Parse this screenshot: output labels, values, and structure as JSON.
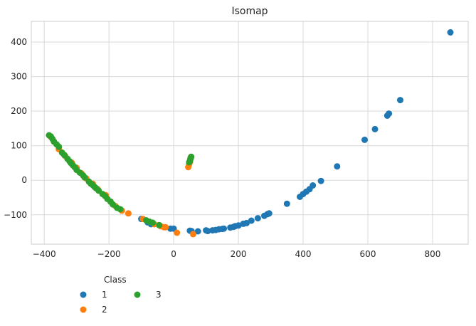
{
  "chart_data": {
    "type": "scatter",
    "title": "Isomap",
    "xlabel": "",
    "ylabel": "",
    "xlim": [
      -440,
      910
    ],
    "ylim": [
      -185,
      460
    ],
    "x_ticks": [
      -400,
      -200,
      0,
      200,
      400,
      600,
      800
    ],
    "y_ticks": [
      -100,
      0,
      100,
      200,
      300,
      400
    ],
    "grid": true,
    "legend": {
      "title": "Class",
      "placement": "below-left",
      "ncol": 2
    },
    "series": [
      {
        "name": "1",
        "color": "#1f77b4",
        "points": [
          [
            -100,
            -112
          ],
          [
            -80,
            -122
          ],
          [
            -70,
            -127
          ],
          [
            -10,
            -140
          ],
          [
            0,
            -140
          ],
          [
            50,
            -146
          ],
          [
            55,
            -147
          ],
          [
            75,
            -148
          ],
          [
            100,
            -145
          ],
          [
            105,
            -147
          ],
          [
            120,
            -145
          ],
          [
            130,
            -144
          ],
          [
            140,
            -142
          ],
          [
            150,
            -141
          ],
          [
            155,
            -140
          ],
          [
            175,
            -137
          ],
          [
            185,
            -135
          ],
          [
            190,
            -133
          ],
          [
            200,
            -131
          ],
          [
            215,
            -126
          ],
          [
            225,
            -124
          ],
          [
            240,
            -117
          ],
          [
            260,
            -110
          ],
          [
            280,
            -103
          ],
          [
            290,
            -98
          ],
          [
            295,
            -96
          ],
          [
            350,
            -68
          ],
          [
            390,
            -48
          ],
          [
            400,
            -40
          ],
          [
            410,
            -33
          ],
          [
            420,
            -26
          ],
          [
            430,
            -15
          ],
          [
            455,
            -2
          ],
          [
            505,
            40
          ],
          [
            590,
            117
          ],
          [
            622,
            148
          ],
          [
            660,
            187
          ],
          [
            665,
            193
          ],
          [
            700,
            232
          ],
          [
            855,
            428
          ]
        ]
      },
      {
        "name": "2",
        "color": "#ff7f0e",
        "points": [
          [
            -380,
            126
          ],
          [
            -370,
            112
          ],
          [
            -355,
            90
          ],
          [
            -335,
            70
          ],
          [
            -315,
            51
          ],
          [
            -300,
            36
          ],
          [
            -285,
            20
          ],
          [
            -270,
            5
          ],
          [
            -250,
            -10
          ],
          [
            -235,
            -26
          ],
          [
            -210,
            -43
          ],
          [
            -195,
            -62
          ],
          [
            -180,
            -75
          ],
          [
            -160,
            -88
          ],
          [
            -140,
            -96
          ],
          [
            -95,
            -112
          ],
          [
            -60,
            -127
          ],
          [
            -40,
            -133
          ],
          [
            -30,
            -136
          ],
          [
            -25,
            -136
          ],
          [
            10,
            -152
          ],
          [
            60,
            -156
          ],
          [
            45,
            38
          ],
          [
            47,
            45
          ],
          [
            50,
            52
          ],
          [
            52,
            65
          ]
        ]
      },
      {
        "name": "3",
        "color": "#2ca02c",
        "points": [
          [
            -385,
            130
          ],
          [
            -380,
            127
          ],
          [
            -375,
            120
          ],
          [
            -370,
            112
          ],
          [
            -362,
            104
          ],
          [
            -355,
            97
          ],
          [
            -345,
            80
          ],
          [
            -338,
            73
          ],
          [
            -328,
            62
          ],
          [
            -322,
            55
          ],
          [
            -318,
            50
          ],
          [
            -312,
            44
          ],
          [
            -306,
            38
          ],
          [
            -300,
            30
          ],
          [
            -290,
            22
          ],
          [
            -280,
            14
          ],
          [
            -275,
            8
          ],
          [
            -262,
            -4
          ],
          [
            -256,
            -10
          ],
          [
            -250,
            -14
          ],
          [
            -245,
            -19
          ],
          [
            -240,
            -23
          ],
          [
            -232,
            -30
          ],
          [
            -220,
            -40
          ],
          [
            -212,
            -46
          ],
          [
            -205,
            -54
          ],
          [
            -195,
            -62
          ],
          [
            -188,
            -70
          ],
          [
            -175,
            -80
          ],
          [
            -165,
            -84
          ],
          [
            -85,
            -116
          ],
          [
            -75,
            -120
          ],
          [
            -65,
            -123
          ],
          [
            -45,
            -130
          ],
          [
            48,
            52
          ],
          [
            50,
            55
          ],
          [
            51,
            59
          ],
          [
            52,
            62
          ],
          [
            53,
            64
          ],
          [
            54,
            68
          ]
        ]
      }
    ]
  }
}
